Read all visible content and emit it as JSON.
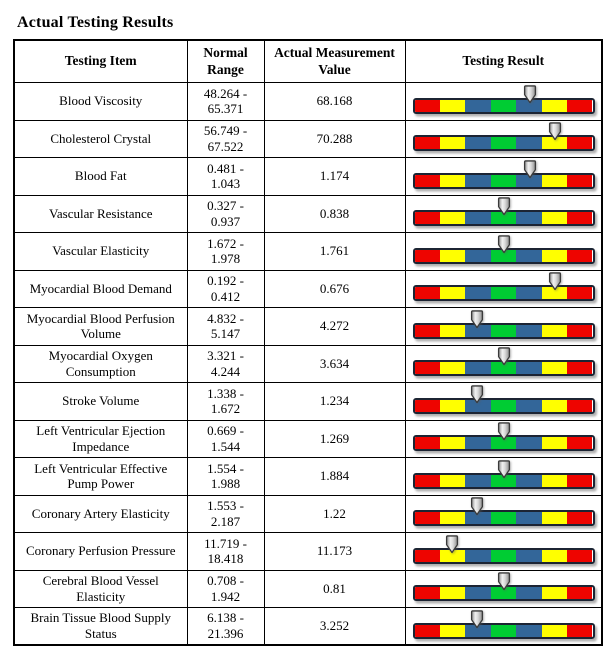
{
  "title": "Actual Testing Results",
  "table": {
    "headers": {
      "item": "Testing Item",
      "range": "Normal Range",
      "value": "Actual Measurement Value",
      "result": "Testing Result"
    },
    "rows": [
      {
        "item": "Blood Viscosity",
        "range": "48.264 - 65.371",
        "value": "68.168",
        "arrow_segment": 4
      },
      {
        "item": "Cholesterol Crystal",
        "range": "56.749 - 67.522",
        "value": "70.288",
        "arrow_segment": 5
      },
      {
        "item": "Blood Fat",
        "range": "0.481 - 1.043",
        "value": "1.174",
        "arrow_segment": 4
      },
      {
        "item": "Vascular Resistance",
        "range": "0.327 - 0.937",
        "value": "0.838",
        "arrow_segment": 3
      },
      {
        "item": "Vascular Elasticity",
        "range": "1.672 - 1.978",
        "value": "1.761",
        "arrow_segment": 3
      },
      {
        "item": "Myocardial Blood Demand",
        "range": "0.192 - 0.412",
        "value": "0.676",
        "arrow_segment": 5
      },
      {
        "item": "Myocardial Blood Perfusion Volume",
        "range": "4.832 - 5.147",
        "value": "4.272",
        "arrow_segment": 2
      },
      {
        "item": "Myocardial Oxygen Consumption",
        "range": "3.321 - 4.244",
        "value": "3.634",
        "arrow_segment": 3
      },
      {
        "item": "Stroke Volume",
        "range": "1.338 - 1.672",
        "value": "1.234",
        "arrow_segment": 2
      },
      {
        "item": "Left Ventricular Ejection Impedance",
        "range": "0.669 - 1.544",
        "value": "1.269",
        "arrow_segment": 3
      },
      {
        "item": "Left Ventricular Effective Pump Power",
        "range": "1.554 - 1.988",
        "value": "1.884",
        "arrow_segment": 3
      },
      {
        "item": "Coronary Artery Elasticity",
        "range": "1.553 - 2.187",
        "value": "1.22",
        "arrow_segment": 2
      },
      {
        "item": "Coronary Perfusion Pressure",
        "range": "11.719 - 18.418",
        "value": "11.173",
        "arrow_segment": 1
      },
      {
        "item": "Cerebral Blood Vessel Elasticity",
        "range": "0.708 - 1.942",
        "value": "0.81",
        "arrow_segment": 3
      },
      {
        "item": "Brain Tissue Blood Supply Status",
        "range": "6.138 - 21.396",
        "value": "3.252",
        "arrow_segment": 2
      }
    ]
  },
  "result_bar": {
    "segments": [
      "red",
      "yellow",
      "blue",
      "green",
      "blue",
      "yellow",
      "red"
    ],
    "colors": {
      "red": "#ee0400",
      "yellow": "#ffff00",
      "blue": "#336699",
      "green": "#00cc33"
    },
    "arrow_icon": "down-arrow",
    "arrow_fill_light": "#f2f2f2",
    "arrow_fill_dark": "#8f8f8f",
    "arrow_outline": "#3a3a3a"
  }
}
